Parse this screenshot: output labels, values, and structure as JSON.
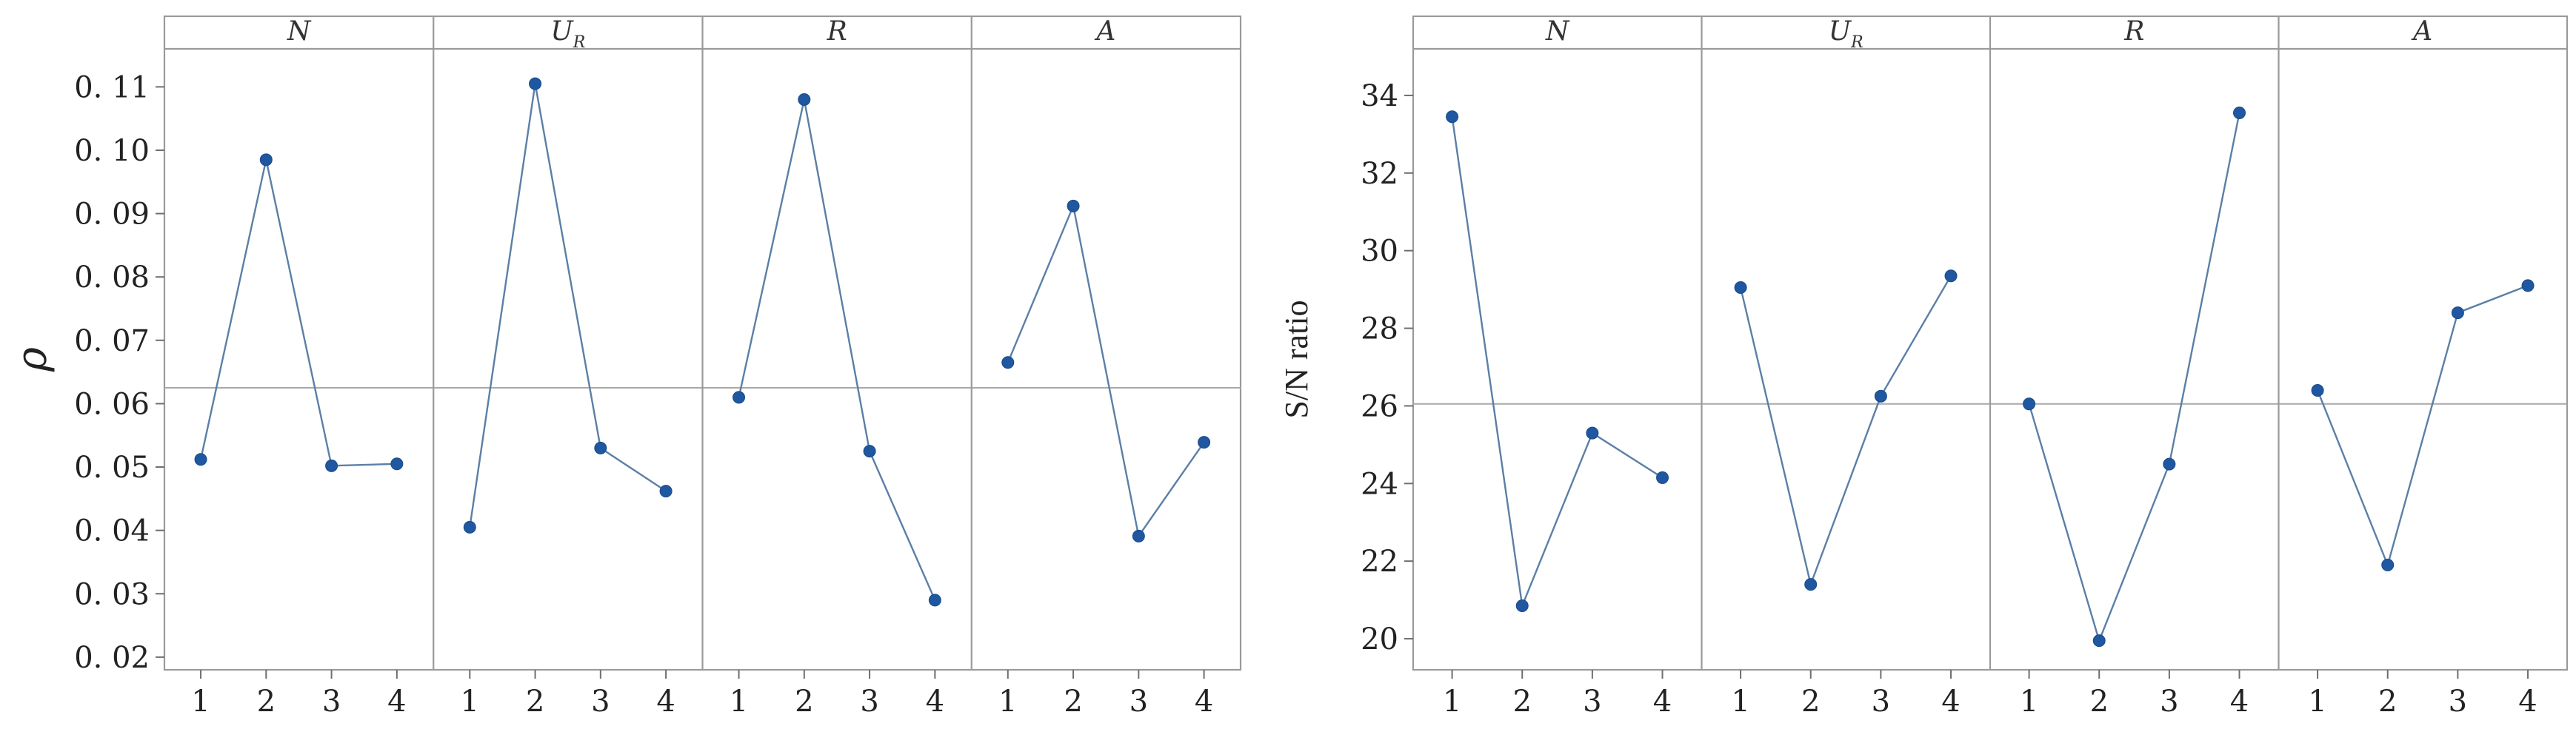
{
  "chart_data": [
    {
      "type": "line",
      "ylabel": "ρ",
      "ylim": [
        0.018,
        0.116
      ],
      "yticks": [
        0.02,
        0.03,
        0.04,
        0.05,
        0.06,
        0.07,
        0.08,
        0.09,
        0.1,
        0.11
      ],
      "ytick_labels": [
        "0. 02",
        "0. 03",
        "0. 04",
        "0. 05",
        "0. 06",
        "0. 07",
        "0. 08",
        "0. 09",
        "0. 10",
        "0. 11"
      ],
      "reference_line": 0.0625,
      "x": [
        "1",
        "2",
        "3",
        "4"
      ],
      "panels": [
        {
          "label": "N",
          "sub": "",
          "values": [
            0.0512,
            0.0985,
            0.0502,
            0.0505
          ]
        },
        {
          "label": "U",
          "sub": "R",
          "values": [
            0.0405,
            0.1105,
            0.053,
            0.0462
          ]
        },
        {
          "label": "R",
          "sub": "",
          "values": [
            0.061,
            0.108,
            0.0525,
            0.029
          ]
        },
        {
          "label": "A",
          "sub": "",
          "values": [
            0.0665,
            0.0912,
            0.0391,
            0.0539
          ]
        }
      ],
      "grid": false,
      "point_color": "#1f57a0",
      "line_color": "#5b7fa6"
    },
    {
      "type": "line",
      "ylabel": "S/N ratio",
      "ylim": [
        19.2,
        35.2
      ],
      "yticks": [
        20,
        22,
        24,
        26,
        28,
        30,
        32,
        34
      ],
      "ytick_labels": [
        "20",
        "22",
        "24",
        "26",
        "28",
        "30",
        "32",
        "34"
      ],
      "reference_line": 26.05,
      "x": [
        "1",
        "2",
        "3",
        "4"
      ],
      "panels": [
        {
          "label": "N",
          "sub": "",
          "values": [
            33.45,
            20.85,
            25.3,
            24.15
          ]
        },
        {
          "label": "U",
          "sub": "R",
          "values": [
            29.05,
            21.4,
            26.25,
            29.35
          ]
        },
        {
          "label": "R",
          "sub": "",
          "values": [
            26.05,
            19.95,
            24.5,
            33.55
          ]
        },
        {
          "label": "A",
          "sub": "",
          "values": [
            26.4,
            21.9,
            28.4,
            29.1
          ]
        }
      ],
      "grid": false,
      "point_color": "#1f57a0",
      "line_color": "#5b7fa6"
    }
  ]
}
